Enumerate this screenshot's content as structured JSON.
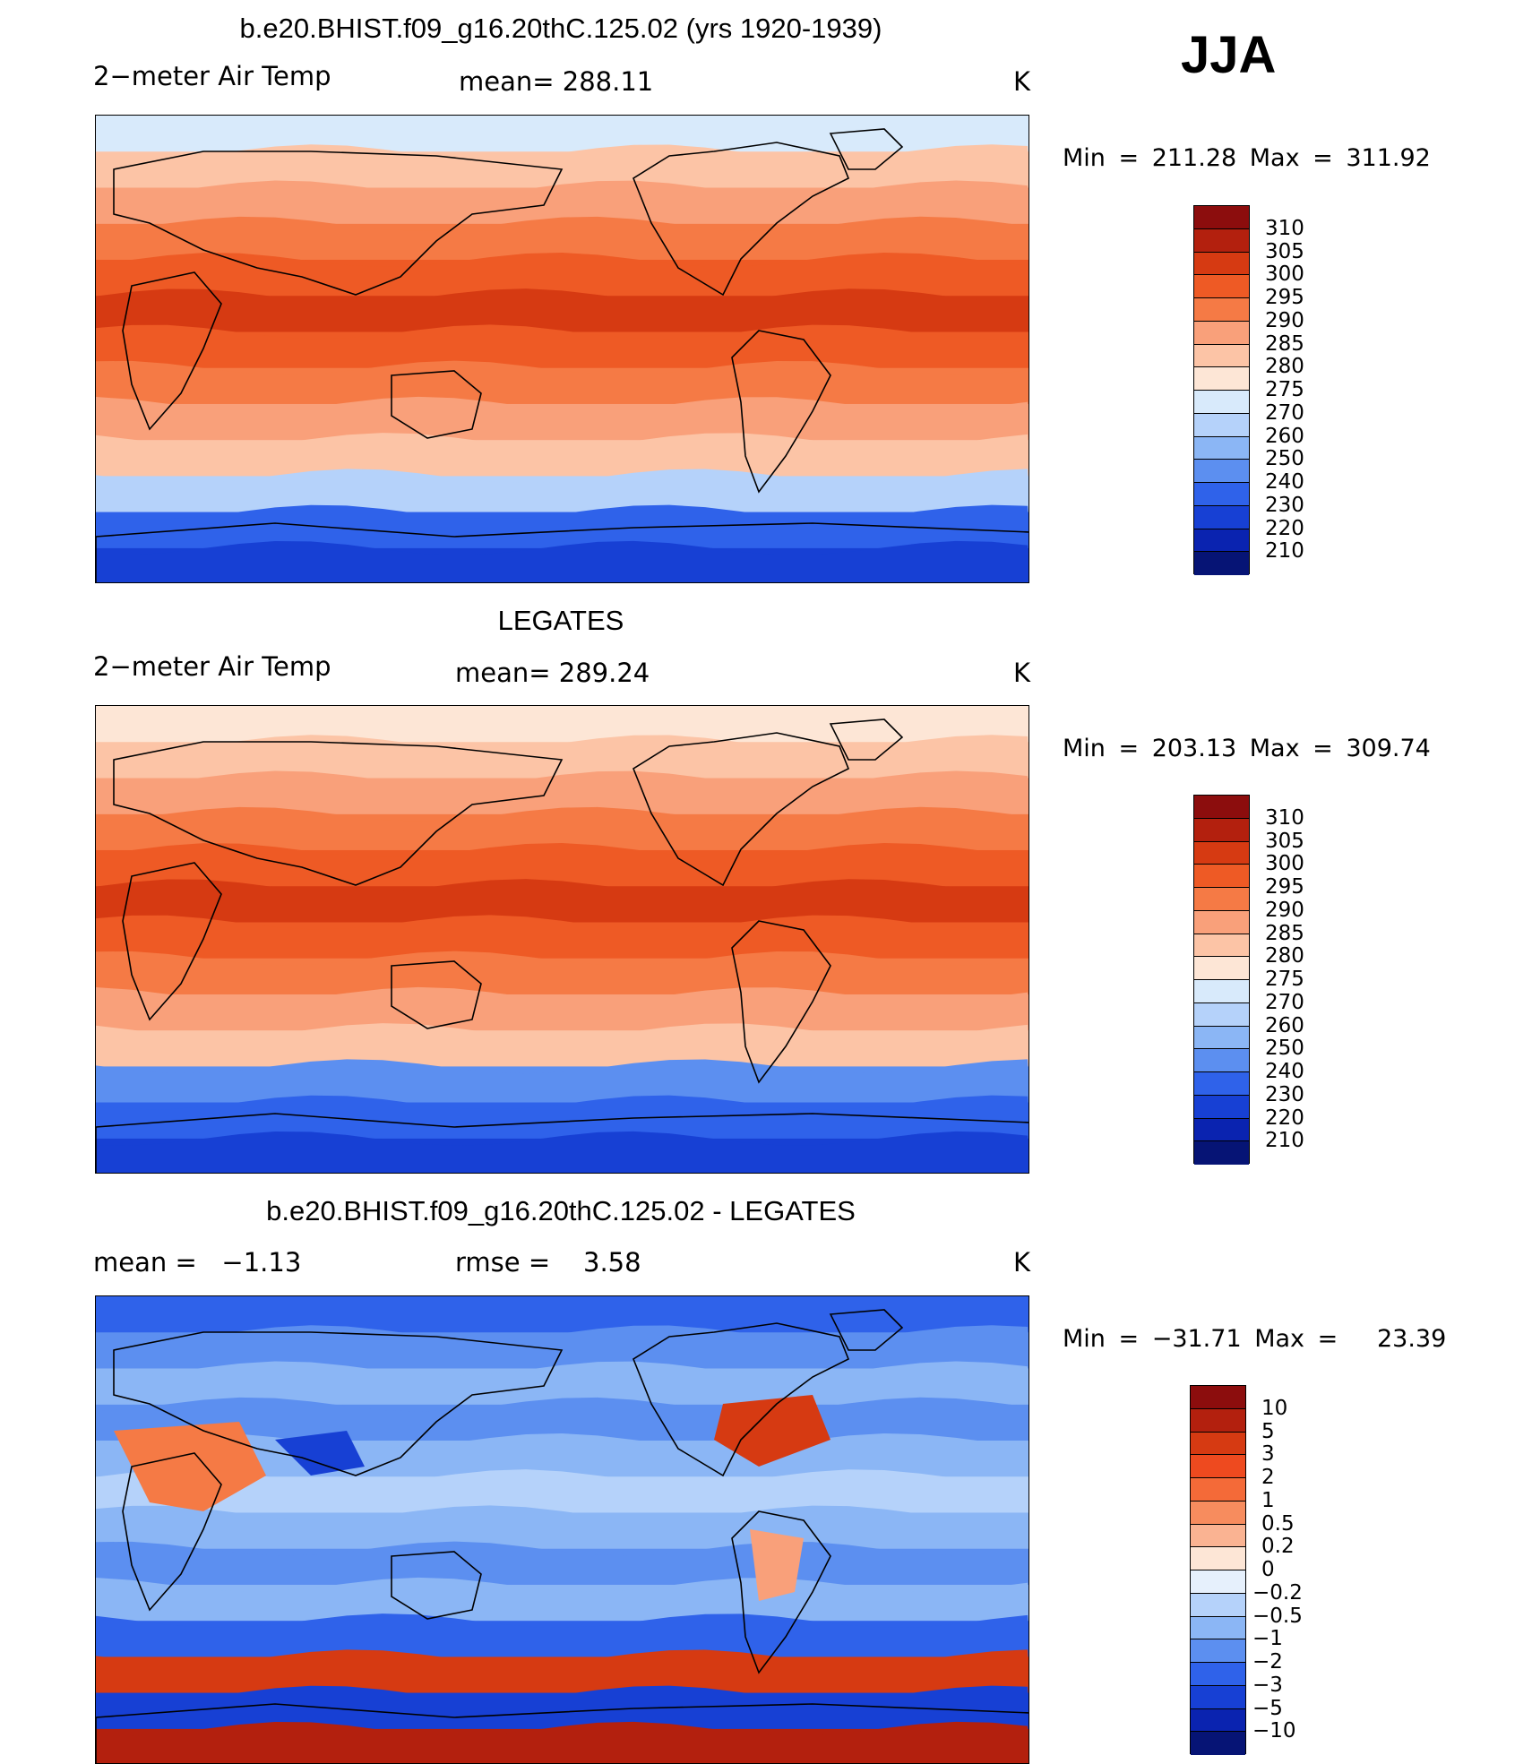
{
  "season": "JJA",
  "panels": [
    {
      "title": "b.e20.BHIST.f09_g16.20thC.125.02 (yrs 1920-1939)",
      "left_label": "2−meter Air Temp",
      "center_label": "mean= 288.11",
      "unit": "K",
      "minmax": "Min = 211.28 Max = 311.92",
      "kind": "model",
      "colorbar": {
        "labels": [
          "310",
          "305",
          "300",
          "295",
          "290",
          "285",
          "280",
          "275",
          "270",
          "260",
          "250",
          "240",
          "230",
          "220",
          "210"
        ],
        "colors": [
          "#8c0d0d",
          "#b3200e",
          "#d63a12",
          "#ee5a25",
          "#f57a45",
          "#f9a07a",
          "#fcc4a6",
          "#fde6d6",
          "#d8eafb",
          "#b5d2fa",
          "#8bb6f5",
          "#5c8ff0",
          "#2f62ea",
          "#1740d4",
          "#0a23b0",
          "#061475"
        ]
      }
    },
    {
      "title": "LEGATES",
      "left_label": "2−meter Air Temp",
      "center_label": "mean= 289.24",
      "unit": "K",
      "minmax": "Min = 203.13 Max = 309.74",
      "kind": "obs",
      "colorbar": {
        "labels": [
          "310",
          "305",
          "300",
          "295",
          "290",
          "285",
          "280",
          "275",
          "270",
          "260",
          "250",
          "240",
          "230",
          "220",
          "210"
        ],
        "colors": [
          "#8c0d0d",
          "#b3200e",
          "#d63a12",
          "#ee5a25",
          "#f57a45",
          "#f9a07a",
          "#fcc4a6",
          "#fde6d6",
          "#d8eafb",
          "#b5d2fa",
          "#8bb6f5",
          "#5c8ff0",
          "#2f62ea",
          "#1740d4",
          "#0a23b0",
          "#061475"
        ]
      }
    },
    {
      "title": "b.e20.BHIST.f09_g16.20thC.125.02 - LEGATES",
      "left_label": "mean =   −1.13",
      "center_label": "rmse =    3.58",
      "unit": "K",
      "minmax": "Min = −31.71 Max =   23.39",
      "kind": "diff",
      "colorbar": {
        "labels": [
          "10",
          "5",
          "3",
          "2",
          "1",
          "0.5",
          "0.2",
          "0",
          "−0.2",
          "−0.5",
          "−1",
          "−2",
          "−3",
          "−5",
          "−10"
        ],
        "colors": [
          "#8c0d0d",
          "#b3200e",
          "#d63a12",
          "#ee4a1f",
          "#f46a38",
          "#f78c5e",
          "#fab392",
          "#fde6d6",
          "#e6f0fc",
          "#b5d2fa",
          "#8bb6f5",
          "#5c8ff0",
          "#2f62ea",
          "#1740d4",
          "#0a23b0",
          "#061475"
        ]
      }
    }
  ]
}
